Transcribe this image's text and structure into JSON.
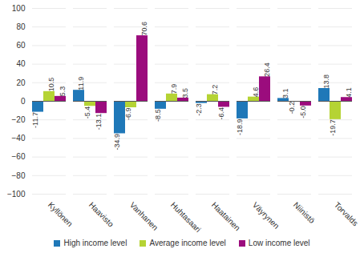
{
  "chart_data": {
    "type": "bar",
    "categories": [
      "Kyllönen",
      "Haavisto",
      "Vanhanen",
      "Huhtasaari",
      "Haatainen",
      "Väyrynen",
      "Niinistö",
      "Torvalds"
    ],
    "series": [
      {
        "name": "High income level",
        "color": "#1f78b8",
        "values": [
          -11.7,
          11.9,
          -34.9,
          -8.5,
          -2.3,
          -18.9,
          3.1,
          13.8
        ]
      },
      {
        "name": "Average income level",
        "color": "#b5d334",
        "values": [
          10.5,
          -5.4,
          -6.9,
          7.9,
          7.2,
          4.6,
          -0.2,
          -19.7
        ]
      },
      {
        "name": "Low income level",
        "color": "#9b0c7d",
        "values": [
          5.3,
          -13.1,
          70.6,
          3.5,
          -6.4,
          26.4,
          -5.0,
          4.1
        ],
        "value_labels": [
          "5.3",
          "-13.1",
          "70.6",
          "3.5",
          "-6.4",
          "26.4",
          "-5.0",
          "4.1"
        ]
      }
    ],
    "ylim": [
      -100,
      100
    ],
    "yticks": [
      -100,
      -80,
      -60,
      -40,
      -20,
      0,
      20,
      40,
      60,
      80,
      100
    ],
    "grid": true,
    "data_labels": true,
    "legend": "bottom"
  }
}
